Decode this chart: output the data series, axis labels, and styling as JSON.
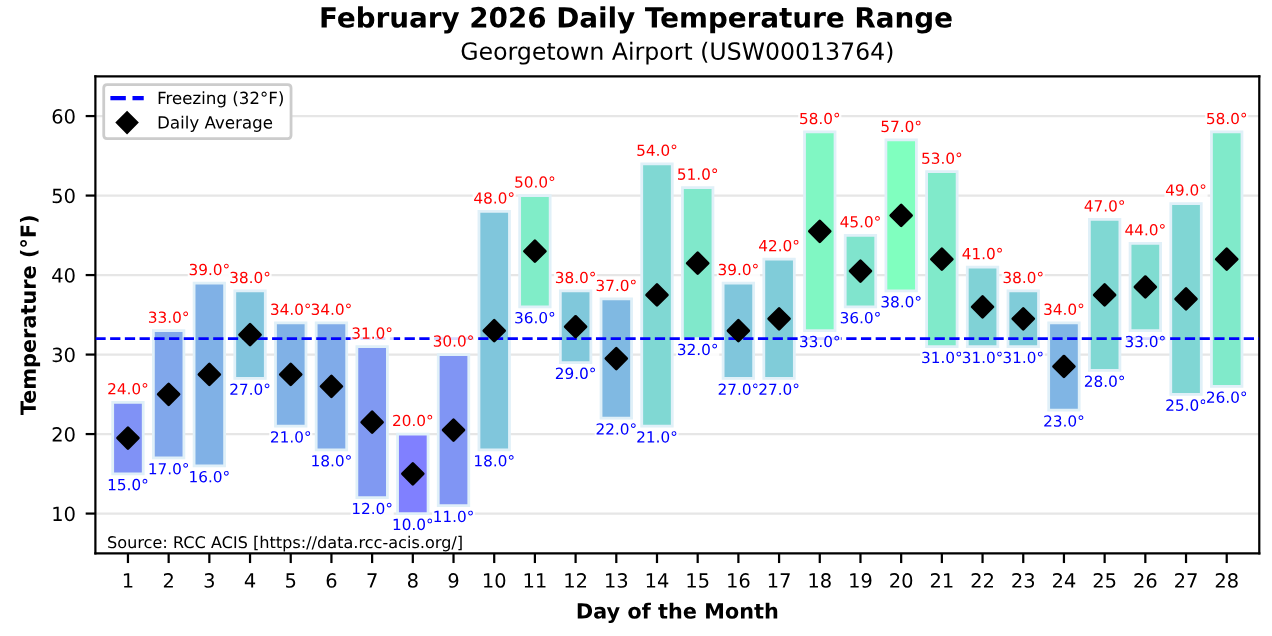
{
  "chart_data": {
    "type": "bar",
    "title": "February 2026 Daily Temperature Range",
    "subtitle": "Georgetown Airport (USW00013764)",
    "xlabel": "Day of the Month",
    "ylabel": "Temperature (°F)",
    "categories": [
      "1",
      "2",
      "3",
      "4",
      "5",
      "6",
      "7",
      "8",
      "9",
      "10",
      "11",
      "12",
      "13",
      "14",
      "15",
      "16",
      "17",
      "18",
      "19",
      "20",
      "21",
      "22",
      "23",
      "24",
      "25",
      "26",
      "27",
      "28"
    ],
    "series": [
      {
        "base": [
          15,
          17,
          16,
          27,
          21,
          18,
          12,
          10,
          11,
          18,
          36,
          29,
          22,
          21,
          32,
          27,
          27,
          33,
          36,
          38,
          31,
          31,
          31,
          23,
          28,
          33,
          25,
          26
        ],
        "values": [
          9,
          16,
          23,
          11,
          13,
          16,
          19,
          10,
          19,
          30,
          14,
          9,
          15,
          33,
          19,
          12,
          15,
          25,
          9,
          19,
          22,
          10,
          7,
          11,
          19,
          11,
          24,
          32
        ],
        "colors": [
          "#8092f6",
          "#80a7eb",
          "#80b1e6",
          "#80c4dd",
          "#80b1e6",
          "#80abe9",
          "#8099f2",
          "#8080ff",
          "#8095f4",
          "#80c6dc",
          "#80edc8",
          "#80c8db",
          "#80b9e2",
          "#80d8d3",
          "#80e8cb",
          "#80c6dc",
          "#80ccd9",
          "#80f7c3",
          "#80e4cd",
          "#80ffbf",
          "#80eaca",
          "#80d2d6",
          "#80ccd9",
          "#80b5e4",
          "#80d8d3",
          "#80dcd1",
          "#80d6d4",
          "#80eaca"
        ]
      },
      {
        "type": "scatter",
        "name": "Daily Average",
        "color": "#000000",
        "marker": "diamond",
        "values": [
          19.5,
          25,
          27.5,
          32.5,
          27.5,
          26,
          21.5,
          15,
          20.5,
          33,
          43,
          33.5,
          29.5,
          37.5,
          41.5,
          33,
          34.5,
          45.5,
          40.5,
          47.5,
          42,
          36,
          34.5,
          28.5,
          37.5,
          38.5,
          37,
          42
        ]
      }
    ],
    "ref_lines": [
      {
        "axis": "y",
        "value": 32,
        "label": "Freezing (32°F)",
        "color": "#0000ff",
        "line_style": "dashed"
      }
    ],
    "ylim": [
      5,
      65
    ],
    "yticks": [
      10,
      20,
      30,
      40,
      50,
      60
    ],
    "grid": "y",
    "legend": "top left",
    "annotations": [
      {
        "text": "24.0°",
        "x": "1",
        "y": 24
      },
      {
        "text": "15.0°",
        "x": "1",
        "y": 15
      },
      {
        "text": "33.0°",
        "x": "2",
        "y": 33
      },
      {
        "text": "17.0°",
        "x": "2",
        "y": 17
      },
      {
        "text": "39.0°",
        "x": "3",
        "y": 39
      },
      {
        "text": "16.0°",
        "x": "3",
        "y": 16
      },
      {
        "text": "38.0°",
        "x": "4",
        "y": 38
      },
      {
        "text": "27.0°",
        "x": "4",
        "y": 27
      },
      {
        "text": "34.0°",
        "x": "5",
        "y": 34
      },
      {
        "text": "21.0°",
        "x": "5",
        "y": 21
      },
      {
        "text": "34.0°",
        "x": "6",
        "y": 34
      },
      {
        "text": "18.0°",
        "x": "6",
        "y": 18
      },
      {
        "text": "31.0°",
        "x": "7",
        "y": 31
      },
      {
        "text": "12.0°",
        "x": "7",
        "y": 12
      },
      {
        "text": "20.0°",
        "x": "8",
        "y": 20
      },
      {
        "text": "10.0°",
        "x": "8",
        "y": 10
      },
      {
        "text": "30.0°",
        "x": "9",
        "y": 30
      },
      {
        "text": "11.0°",
        "x": "9",
        "y": 11
      },
      {
        "text": "48.0°",
        "x": "10",
        "y": 48
      },
      {
        "text": "18.0°",
        "x": "10",
        "y": 18
      },
      {
        "text": "50.0°",
        "x": "11",
        "y": 50
      },
      {
        "text": "36.0°",
        "x": "11",
        "y": 36
      },
      {
        "text": "38.0°",
        "x": "12",
        "y": 38
      },
      {
        "text": "29.0°",
        "x": "12",
        "y": 29
      },
      {
        "text": "37.0°",
        "x": "13",
        "y": 37
      },
      {
        "text": "22.0°",
        "x": "13",
        "y": 22
      },
      {
        "text": "54.0°",
        "x": "14",
        "y": 54
      },
      {
        "text": "21.0°",
        "x": "14",
        "y": 21
      },
      {
        "text": "51.0°",
        "x": "15",
        "y": 51
      },
      {
        "text": "32.0°",
        "x": "15",
        "y": 32
      },
      {
        "text": "39.0°",
        "x": "16",
        "y": 39
      },
      {
        "text": "27.0°",
        "x": "16",
        "y": 27
      },
      {
        "text": "42.0°",
        "x": "17",
        "y": 42
      },
      {
        "text": "27.0°",
        "x": "17",
        "y": 27
      },
      {
        "text": "58.0°",
        "x": "18",
        "y": 58
      },
      {
        "text": "33.0°",
        "x": "18",
        "y": 33
      },
      {
        "text": "45.0°",
        "x": "19",
        "y": 45
      },
      {
        "text": "36.0°",
        "x": "19",
        "y": 36
      },
      {
        "text": "57.0°",
        "x": "20",
        "y": 57
      },
      {
        "text": "38.0°",
        "x": "20",
        "y": 38
      },
      {
        "text": "53.0°",
        "x": "21",
        "y": 53
      },
      {
        "text": "31.0°",
        "x": "21",
        "y": 31
      },
      {
        "text": "41.0°",
        "x": "22",
        "y": 41
      },
      {
        "text": "31.0°",
        "x": "22",
        "y": 31
      },
      {
        "text": "38.0°",
        "x": "23",
        "y": 38
      },
      {
        "text": "31.0°",
        "x": "23",
        "y": 31
      },
      {
        "text": "34.0°",
        "x": "24",
        "y": 34
      },
      {
        "text": "23.0°",
        "x": "24",
        "y": 23
      },
      {
        "text": "47.0°",
        "x": "25",
        "y": 47
      },
      {
        "text": "28.0°",
        "x": "25",
        "y": 28
      },
      {
        "text": "44.0°",
        "x": "26",
        "y": 44
      },
      {
        "text": "33.0°",
        "x": "26",
        "y": 33
      },
      {
        "text": "49.0°",
        "x": "27",
        "y": 49
      },
      {
        "text": "25.0°",
        "x": "27",
        "y": 25
      },
      {
        "text": "58.0°",
        "x": "28",
        "y": 58
      },
      {
        "text": "26.0°",
        "x": "28",
        "y": 26
      },
      "Source: RCC ACIS [https://data.rcc-acis.org/]"
    ]
  }
}
